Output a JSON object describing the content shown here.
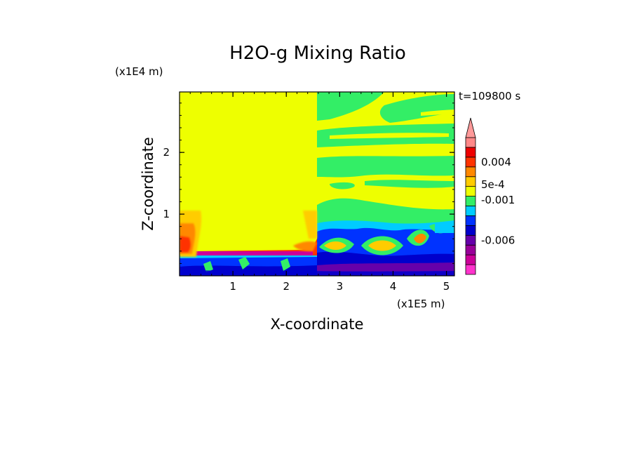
{
  "chart_data": {
    "type": "heatmap",
    "title": "H2O-g Mixing Ratio",
    "xlabel": "X-coordinate",
    "ylabel": "Z-coordinate",
    "x_scale_label": "(x1E5 m)",
    "y_scale_label": "(x1E4 m)",
    "time_label": "t=109800 s",
    "xlim": [
      0,
      5.15
    ],
    "ylim": [
      0,
      2.98
    ],
    "x_ticks": [
      {
        "value": 1,
        "label": "1"
      },
      {
        "value": 2,
        "label": "2"
      },
      {
        "value": 3,
        "label": "3"
      },
      {
        "value": 4,
        "label": "4"
      },
      {
        "value": 5,
        "label": "5"
      }
    ],
    "y_ticks": [
      {
        "value": 1,
        "label": "1"
      },
      {
        "value": 2,
        "label": "2"
      }
    ],
    "colorbar": {
      "colors": [
        "#ff33cc",
        "#cc0099",
        "#990099",
        "#6600aa",
        "#0000cc",
        "#0033ff",
        "#00ccff",
        "#33ee66",
        "#eeff00",
        "#ffcc00",
        "#ff8800",
        "#ff3300",
        "#ee0000",
        "#ff8888"
      ],
      "extend_top_color": "#ff9999",
      "labels": [
        {
          "value": -0.006,
          "label": "-0.006",
          "level_index": 3.5
        },
        {
          "value": -0.001,
          "label": "-0.001",
          "level_index": 7.6
        },
        {
          "value": 0.0005,
          "label": "5e-4",
          "level_index": 9.2
        },
        {
          "value": 0.004,
          "label": "0.004",
          "level_index": 11.5
        }
      ]
    },
    "colors": {
      "background": "#eeff00",
      "green": "#33ee66",
      "cyan": "#00ccff",
      "blue": "#0033ff",
      "navy": "#0000cc",
      "purple": "#6600aa",
      "magenta": "#cc0099",
      "orange": "#ffcc00",
      "red": "#ff3300"
    }
  }
}
